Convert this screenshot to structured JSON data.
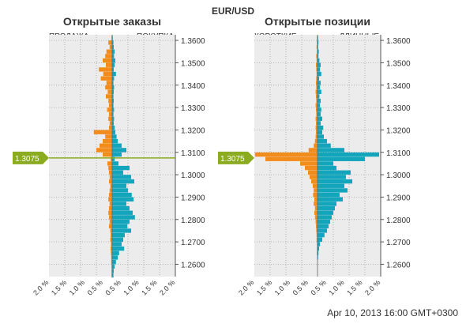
{
  "header": {
    "symbol": "EUR/USD",
    "timestamp": "Apr 10, 2013 16:00 GMT+0300"
  },
  "current_price": "1.3075",
  "colors": {
    "sell": "#f28c1c",
    "buy": "#12a5bc",
    "price_line": "#8aac1e",
    "plot_bg": "#ececec",
    "grid": "#999999"
  },
  "chart_data": [
    {
      "type": "bar",
      "title": "Открытые заказы",
      "left_label": "ПРОДАЖА",
      "right_label": "ПОКУПКА",
      "y_ticks": [
        "1.3600",
        "1.3500",
        "1.3400",
        "1.3300",
        "1.3200",
        "1.3100",
        "1.3000",
        "1.2900",
        "1.2800",
        "1.2700",
        "1.2600"
      ],
      "x_ticks": [
        "2.0 %",
        "1.5 %",
        "1.0 %",
        "0.5 %",
        "0.5 %",
        "1.0 %",
        "1.5 %",
        "2.0 %"
      ],
      "ylim": [
        1.2545,
        1.3625
      ],
      "xlim_percent": [
        -2.0,
        2.0
      ],
      "series": [
        {
          "name": "ПРОДАЖА",
          "values": [
            {
              "price": 1.361,
              "pct": 0.02
            },
            {
              "price": 1.359,
              "pct": 0.12
            },
            {
              "price": 1.357,
              "pct": 0.08
            },
            {
              "price": 1.355,
              "pct": 0.18
            },
            {
              "price": 1.353,
              "pct": 0.22
            },
            {
              "price": 1.351,
              "pct": 0.3
            },
            {
              "price": 1.349,
              "pct": 0.2
            },
            {
              "price": 1.347,
              "pct": 0.42
            },
            {
              "price": 1.345,
              "pct": 0.28
            },
            {
              "price": 1.343,
              "pct": 0.36
            },
            {
              "price": 1.341,
              "pct": 0.18
            },
            {
              "price": 1.339,
              "pct": 0.22
            },
            {
              "price": 1.337,
              "pct": 0.14
            },
            {
              "price": 1.335,
              "pct": 0.2
            },
            {
              "price": 1.333,
              "pct": 0.12
            },
            {
              "price": 1.331,
              "pct": 0.1
            },
            {
              "price": 1.329,
              "pct": 0.16
            },
            {
              "price": 1.327,
              "pct": 0.1
            },
            {
              "price": 1.325,
              "pct": 0.12
            },
            {
              "price": 1.323,
              "pct": 0.08
            },
            {
              "price": 1.321,
              "pct": 0.1
            },
            {
              "price": 1.319,
              "pct": 0.58
            },
            {
              "price": 1.317,
              "pct": 0.22
            },
            {
              "price": 1.315,
              "pct": 0.3
            },
            {
              "price": 1.313,
              "pct": 0.4
            },
            {
              "price": 1.311,
              "pct": 0.5
            },
            {
              "price": 1.309,
              "pct": 0.3
            },
            {
              "price": 1.307,
              "pct": 0.05
            },
            {
              "price": 1.305,
              "pct": 0.15
            },
            {
              "price": 1.303,
              "pct": 0.12
            },
            {
              "price": 1.301,
              "pct": 0.1
            },
            {
              "price": 1.299,
              "pct": 0.08
            },
            {
              "price": 1.297,
              "pct": 0.1
            },
            {
              "price": 1.295,
              "pct": 0.06
            },
            {
              "price": 1.293,
              "pct": 0.08
            },
            {
              "price": 1.291,
              "pct": 0.1
            },
            {
              "price": 1.289,
              "pct": 0.12
            },
            {
              "price": 1.287,
              "pct": 0.08
            },
            {
              "price": 1.285,
              "pct": 0.1
            },
            {
              "price": 1.283,
              "pct": 0.12
            },
            {
              "price": 1.281,
              "pct": 0.1
            },
            {
              "price": 1.279,
              "pct": 0.08
            },
            {
              "price": 1.277,
              "pct": 0.1
            },
            {
              "price": 1.275,
              "pct": 0.06
            },
            {
              "price": 1.273,
              "pct": 0.05
            },
            {
              "price": 1.271,
              "pct": 0.06
            },
            {
              "price": 1.269,
              "pct": 0.04
            },
            {
              "price": 1.267,
              "pct": 0.05
            },
            {
              "price": 1.265,
              "pct": 0.04
            },
            {
              "price": 1.263,
              "pct": 0.03
            },
            {
              "price": 1.261,
              "pct": 0.03
            },
            {
              "price": 1.259,
              "pct": 0.02
            },
            {
              "price": 1.257,
              "pct": 0.02
            },
            {
              "price": 1.255,
              "pct": 0.02
            }
          ]
        },
        {
          "name": "ПОКУПКА",
          "values": [
            {
              "price": 1.361,
              "pct": 0.02
            },
            {
              "price": 1.359,
              "pct": 0.04
            },
            {
              "price": 1.357,
              "pct": 0.05
            },
            {
              "price": 1.355,
              "pct": 0.08
            },
            {
              "price": 1.353,
              "pct": 0.06
            },
            {
              "price": 1.351,
              "pct": 0.1
            },
            {
              "price": 1.349,
              "pct": 0.08
            },
            {
              "price": 1.347,
              "pct": 0.05
            },
            {
              "price": 1.345,
              "pct": 0.12
            },
            {
              "price": 1.343,
              "pct": 0.06
            },
            {
              "price": 1.341,
              "pct": 0.04
            },
            {
              "price": 1.339,
              "pct": 0.06
            },
            {
              "price": 1.337,
              "pct": 0.05
            },
            {
              "price": 1.335,
              "pct": 0.04
            },
            {
              "price": 1.333,
              "pct": 0.05
            },
            {
              "price": 1.331,
              "pct": 0.04
            },
            {
              "price": 1.329,
              "pct": 0.06
            },
            {
              "price": 1.327,
              "pct": 0.04
            },
            {
              "price": 1.325,
              "pct": 0.06
            },
            {
              "price": 1.323,
              "pct": 0.05
            },
            {
              "price": 1.321,
              "pct": 0.08
            },
            {
              "price": 1.319,
              "pct": 0.1
            },
            {
              "price": 1.317,
              "pct": 0.14
            },
            {
              "price": 1.315,
              "pct": 0.18
            },
            {
              "price": 1.313,
              "pct": 0.3
            },
            {
              "price": 1.311,
              "pct": 0.45
            },
            {
              "price": 1.309,
              "pct": 0.3
            },
            {
              "price": 1.307,
              "pct": 0.08
            },
            {
              "price": 1.305,
              "pct": 0.2
            },
            {
              "price": 1.303,
              "pct": 0.55
            },
            {
              "price": 1.301,
              "pct": 0.35
            },
            {
              "price": 1.299,
              "pct": 0.6
            },
            {
              "price": 1.297,
              "pct": 0.7
            },
            {
              "price": 1.295,
              "pct": 0.45
            },
            {
              "price": 1.293,
              "pct": 0.5
            },
            {
              "price": 1.291,
              "pct": 0.62
            },
            {
              "price": 1.289,
              "pct": 0.68
            },
            {
              "price": 1.287,
              "pct": 0.45
            },
            {
              "price": 1.285,
              "pct": 0.55
            },
            {
              "price": 1.283,
              "pct": 0.65
            },
            {
              "price": 1.281,
              "pct": 0.72
            },
            {
              "price": 1.279,
              "pct": 0.55
            },
            {
              "price": 1.277,
              "pct": 0.48
            },
            {
              "price": 1.275,
              "pct": 0.6
            },
            {
              "price": 1.273,
              "pct": 0.4
            },
            {
              "price": 1.271,
              "pct": 0.35
            },
            {
              "price": 1.269,
              "pct": 0.3
            },
            {
              "price": 1.267,
              "pct": 0.38
            },
            {
              "price": 1.265,
              "pct": 0.22
            },
            {
              "price": 1.263,
              "pct": 0.18
            },
            {
              "price": 1.261,
              "pct": 0.12
            },
            {
              "price": 1.259,
              "pct": 0.08
            },
            {
              "price": 1.257,
              "pct": 0.05
            },
            {
              "price": 1.255,
              "pct": 0.04
            }
          ]
        }
      ]
    },
    {
      "type": "bar",
      "title": "Открытые позиции",
      "left_label": "КОРОТКИЕ",
      "right_label": "ДЛИННЫЕ",
      "y_ticks": [
        "1.3600",
        "1.3500",
        "1.3400",
        "1.3300",
        "1.3200",
        "1.3100",
        "1.3000",
        "1.2900",
        "1.2800",
        "1.2700",
        "1.2600"
      ],
      "x_ticks": [
        "2.0 %",
        "1.5 %",
        "1.0 %",
        "0.5 %",
        "0.5 %",
        "1.0 %",
        "1.5 %",
        "2.0 %"
      ],
      "ylim": [
        1.2545,
        1.3625
      ],
      "xlim_percent": [
        -2.0,
        2.0
      ],
      "series": [
        {
          "name": "КОРОТКИЕ",
          "values": [
            {
              "price": 1.361,
              "pct": 0.02
            },
            {
              "price": 1.359,
              "pct": 0.02
            },
            {
              "price": 1.357,
              "pct": 0.03
            },
            {
              "price": 1.355,
              "pct": 0.02
            },
            {
              "price": 1.353,
              "pct": 0.04
            },
            {
              "price": 1.351,
              "pct": 0.03
            },
            {
              "price": 1.349,
              "pct": 0.05
            },
            {
              "price": 1.347,
              "pct": 0.04
            },
            {
              "price": 1.345,
              "pct": 0.03
            },
            {
              "price": 1.343,
              "pct": 0.04
            },
            {
              "price": 1.341,
              "pct": 0.05
            },
            {
              "price": 1.339,
              "pct": 0.04
            },
            {
              "price": 1.337,
              "pct": 0.06
            },
            {
              "price": 1.335,
              "pct": 0.05
            },
            {
              "price": 1.333,
              "pct": 0.04
            },
            {
              "price": 1.331,
              "pct": 0.06
            },
            {
              "price": 1.329,
              "pct": 0.05
            },
            {
              "price": 1.327,
              "pct": 0.04
            },
            {
              "price": 1.325,
              "pct": 0.06
            },
            {
              "price": 1.323,
              "pct": 0.05
            },
            {
              "price": 1.321,
              "pct": 0.06
            },
            {
              "price": 1.319,
              "pct": 0.05
            },
            {
              "price": 1.317,
              "pct": 0.06
            },
            {
              "price": 1.315,
              "pct": 0.08
            },
            {
              "price": 1.313,
              "pct": 0.12
            },
            {
              "price": 1.311,
              "pct": 0.28
            },
            {
              "price": 1.309,
              "pct": 1.98
            },
            {
              "price": 1.307,
              "pct": 1.65
            },
            {
              "price": 1.305,
              "pct": 0.55
            },
            {
              "price": 1.303,
              "pct": 0.4
            },
            {
              "price": 1.301,
              "pct": 0.3
            },
            {
              "price": 1.299,
              "pct": 0.25
            },
            {
              "price": 1.297,
              "pct": 0.2
            },
            {
              "price": 1.295,
              "pct": 0.15
            },
            {
              "price": 1.293,
              "pct": 0.12
            },
            {
              "price": 1.291,
              "pct": 0.14
            },
            {
              "price": 1.289,
              "pct": 0.1
            },
            {
              "price": 1.287,
              "pct": 0.12
            },
            {
              "price": 1.285,
              "pct": 0.08
            },
            {
              "price": 1.283,
              "pct": 0.1
            },
            {
              "price": 1.281,
              "pct": 0.08
            },
            {
              "price": 1.279,
              "pct": 0.06
            },
            {
              "price": 1.277,
              "pct": 0.05
            },
            {
              "price": 1.275,
              "pct": 0.04
            },
            {
              "price": 1.273,
              "pct": 0.03
            },
            {
              "price": 1.271,
              "pct": 0.03
            },
            {
              "price": 1.269,
              "pct": 0.02
            },
            {
              "price": 1.267,
              "pct": 0.02
            },
            {
              "price": 1.265,
              "pct": 0.02
            },
            {
              "price": 1.263,
              "pct": 0.01
            }
          ]
        },
        {
          "name": "ДЛИННЫЕ",
          "values": [
            {
              "price": 1.361,
              "pct": 0.02
            },
            {
              "price": 1.359,
              "pct": 0.03
            },
            {
              "price": 1.357,
              "pct": 0.02
            },
            {
              "price": 1.355,
              "pct": 0.04
            },
            {
              "price": 1.353,
              "pct": 0.03
            },
            {
              "price": 1.351,
              "pct": 0.06
            },
            {
              "price": 1.349,
              "pct": 0.1
            },
            {
              "price": 1.347,
              "pct": 0.08
            },
            {
              "price": 1.345,
              "pct": 0.12
            },
            {
              "price": 1.343,
              "pct": 0.05
            },
            {
              "price": 1.341,
              "pct": 0.1
            },
            {
              "price": 1.339,
              "pct": 0.08
            },
            {
              "price": 1.337,
              "pct": 0.12
            },
            {
              "price": 1.335,
              "pct": 0.06
            },
            {
              "price": 1.333,
              "pct": 0.1
            },
            {
              "price": 1.331,
              "pct": 0.08
            },
            {
              "price": 1.329,
              "pct": 0.12
            },
            {
              "price": 1.327,
              "pct": 0.1
            },
            {
              "price": 1.325,
              "pct": 0.15
            },
            {
              "price": 1.323,
              "pct": 0.1
            },
            {
              "price": 1.321,
              "pct": 0.18
            },
            {
              "price": 1.319,
              "pct": 0.15
            },
            {
              "price": 1.317,
              "pct": 0.2
            },
            {
              "price": 1.315,
              "pct": 0.3
            },
            {
              "price": 1.313,
              "pct": 0.42
            },
            {
              "price": 1.311,
              "pct": 0.85
            },
            {
              "price": 1.309,
              "pct": 1.95
            },
            {
              "price": 1.307,
              "pct": 1.5
            },
            {
              "price": 1.305,
              "pct": 0.5
            },
            {
              "price": 1.303,
              "pct": 0.6
            },
            {
              "price": 1.301,
              "pct": 1.05
            },
            {
              "price": 1.299,
              "pct": 0.9
            },
            {
              "price": 1.297,
              "pct": 1.1
            },
            {
              "price": 1.295,
              "pct": 0.85
            },
            {
              "price": 1.293,
              "pct": 0.95
            },
            {
              "price": 1.291,
              "pct": 0.7
            },
            {
              "price": 1.289,
              "pct": 0.8
            },
            {
              "price": 1.287,
              "pct": 0.6
            },
            {
              "price": 1.285,
              "pct": 0.55
            },
            {
              "price": 1.283,
              "pct": 0.5
            },
            {
              "price": 1.281,
              "pct": 0.45
            },
            {
              "price": 1.279,
              "pct": 0.4
            },
            {
              "price": 1.277,
              "pct": 0.35
            },
            {
              "price": 1.275,
              "pct": 0.3
            },
            {
              "price": 1.273,
              "pct": 0.22
            },
            {
              "price": 1.271,
              "pct": 0.15
            },
            {
              "price": 1.269,
              "pct": 0.08
            },
            {
              "price": 1.267,
              "pct": 0.05
            },
            {
              "price": 1.265,
              "pct": 0.03
            },
            {
              "price": 1.263,
              "pct": 0.02
            }
          ]
        }
      ]
    }
  ]
}
